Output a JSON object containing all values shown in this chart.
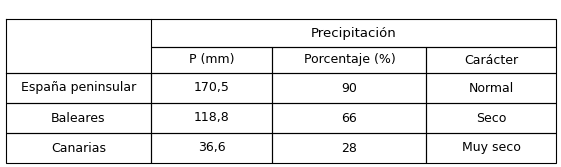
{
  "title_text": "Precipitación",
  "header_cols": [
    "P (mm)",
    "Porcentaje (%)",
    "Carácter"
  ],
  "row_labels": [
    "España peninsular",
    "Baleares",
    "Canarias"
  ],
  "data_rows": [
    [
      "170,5",
      "90",
      "Normal"
    ],
    [
      "118,8",
      "66",
      "Seco"
    ],
    [
      "36,6",
      "28",
      "Muy seco"
    ]
  ],
  "bg_color": "#ffffff",
  "line_color": "#000000",
  "font_size": 9.0,
  "title_font_size": 9.5,
  "fig_width": 5.61,
  "fig_height": 1.67,
  "dpi": 100
}
